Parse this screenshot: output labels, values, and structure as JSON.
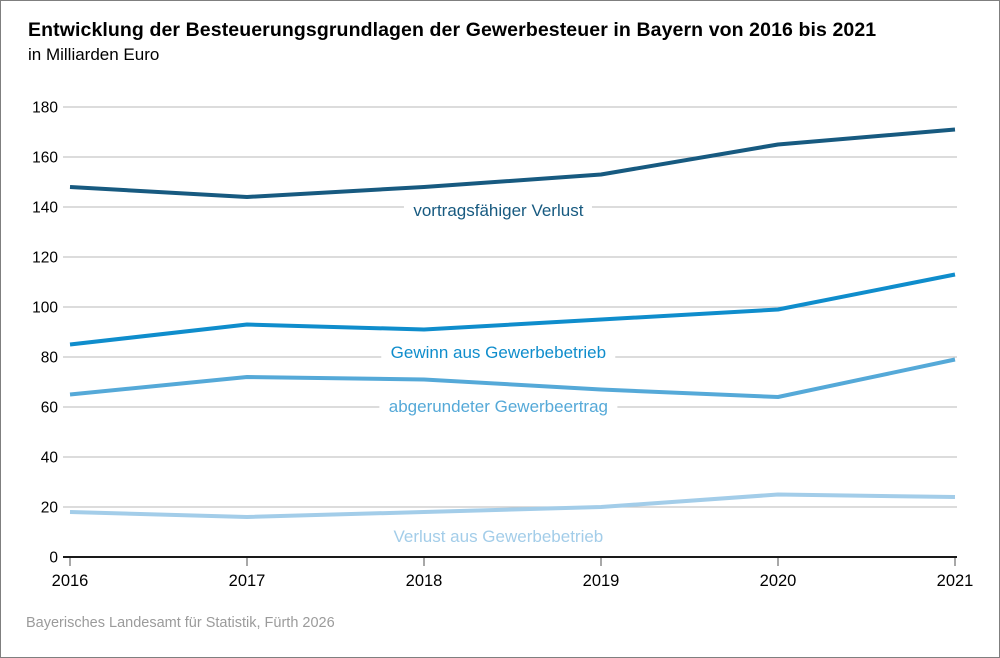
{
  "header": {
    "title": "Entwicklung der Besteuerungsgrundlagen der Gewerbesteuer in Bayern von 2016 bis 2021",
    "subtitle": "in Milliarden Euro"
  },
  "footer": {
    "source": "Bayerisches Landesamt für Statistik, Fürth 2026"
  },
  "chart_data": {
    "type": "line",
    "title": "Entwicklung der Besteuerungsgrundlagen der Gewerbesteuer in Bayern von 2016 bis 2021",
    "subtitle": "in Milliarden Euro",
    "categories": [
      "2016",
      "2017",
      "2018",
      "2019",
      "2020",
      "2021"
    ],
    "series": [
      {
        "name": "vortragsfähiger Verlust",
        "color": "#175a80",
        "values": [
          148,
          144,
          148,
          153,
          165,
          171
        ],
        "label_v": 140,
        "label_dy": 4
      },
      {
        "name": "Gewinn aus Gewerbebetrieb",
        "color": "#0f8dcc",
        "values": [
          85,
          93,
          91,
          95,
          99,
          113
        ],
        "label_v": 80,
        "label_dy": -4
      },
      {
        "name": "abgerundeter Gewerbeertrag",
        "color": "#55a9d8",
        "values": [
          65,
          72,
          71,
          67,
          64,
          79
        ],
        "label_v": 60,
        "label_dy": 0
      },
      {
        "name": "Verlust aus Gewerbebetrieb",
        "color": "#a3cde9",
        "values": [
          18,
          16,
          18,
          20,
          25,
          24
        ],
        "label_v": 8,
        "label_dy": 0
      }
    ],
    "xlabel": "",
    "ylabel": "",
    "ylim": [
      0,
      180
    ],
    "ytick_step": 20,
    "grid": true,
    "legend_position": "inline-labels",
    "label_x_fraction": 0.487
  },
  "colors": {
    "grid": "#c6c6c6",
    "axis": "#1a1a1a",
    "tick": "#7a7a7a",
    "tick_label": "#000000",
    "footer_text": "#9b9b9b"
  }
}
